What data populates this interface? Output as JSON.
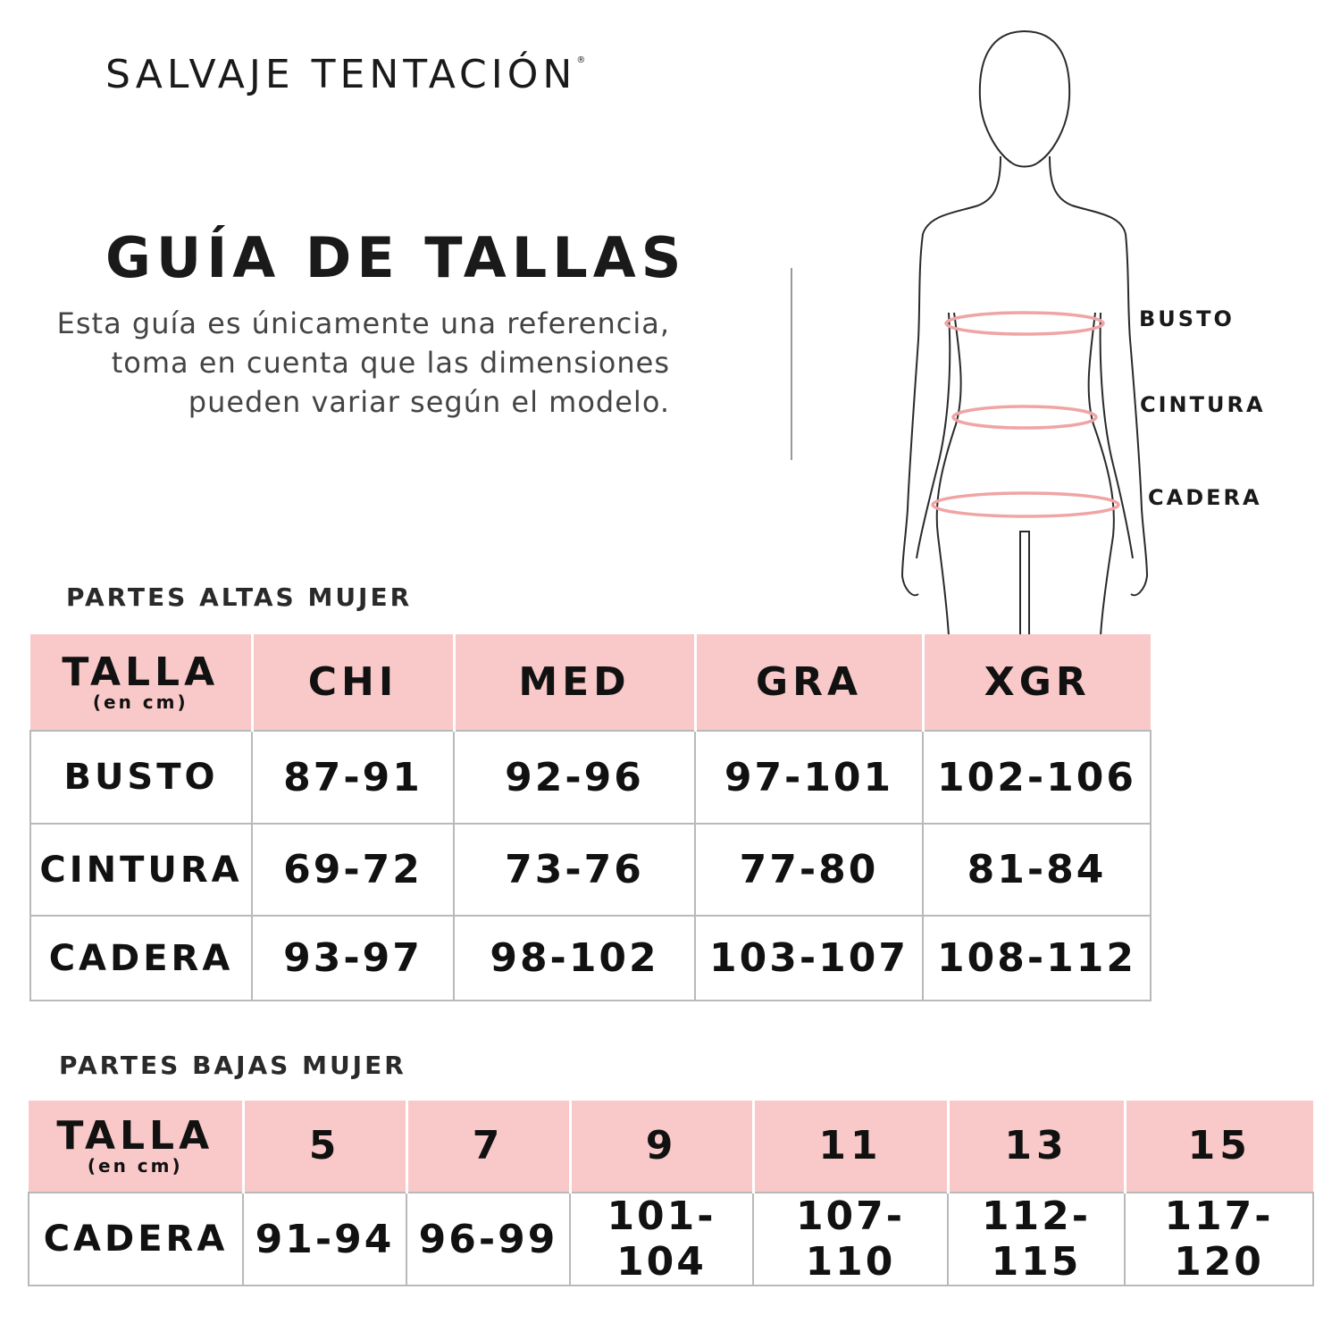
{
  "brand": {
    "name": "SALVAJE TENTACIÓN",
    "mark": "®"
  },
  "title": "GUÍA DE TALLAS",
  "description": "Esta guía es únicamente una referencia, toma en cuenta que las dimensiones pueden variar según el modelo.",
  "figure": {
    "labels": [
      "BUSTO",
      "CINTURA",
      "CADERA"
    ],
    "ring_color": "#f0a4a4"
  },
  "colors": {
    "header_bg": "#f9c8c8",
    "grid": "#b9b9b9"
  },
  "tops": {
    "section_title": "PARTES ALTAS MUJER",
    "header_label": "TALLA",
    "header_unit": "(en cm)",
    "columns": [
      "CHI",
      "MED",
      "GRA",
      "XGR"
    ],
    "rows": [
      {
        "label": "BUSTO",
        "values": [
          "87-91",
          "92-96",
          "97-101",
          "102-106"
        ]
      },
      {
        "label": "CINTURA",
        "values": [
          "69-72",
          "73-76",
          "77-80",
          "81-84"
        ]
      },
      {
        "label": "CADERA",
        "values": [
          "93-97",
          "98-102",
          "103-107",
          "108-112"
        ]
      }
    ]
  },
  "bottoms": {
    "section_title": "PARTES BAJAS MUJER",
    "header_label": "TALLA",
    "header_unit": "(en cm)",
    "columns": [
      "5",
      "7",
      "9",
      "11",
      "13",
      "15"
    ],
    "rows": [
      {
        "label": "CADERA",
        "values": [
          "91-94",
          "96-99",
          "101-104",
          "107-110",
          "112-115",
          "117-120"
        ]
      }
    ]
  }
}
